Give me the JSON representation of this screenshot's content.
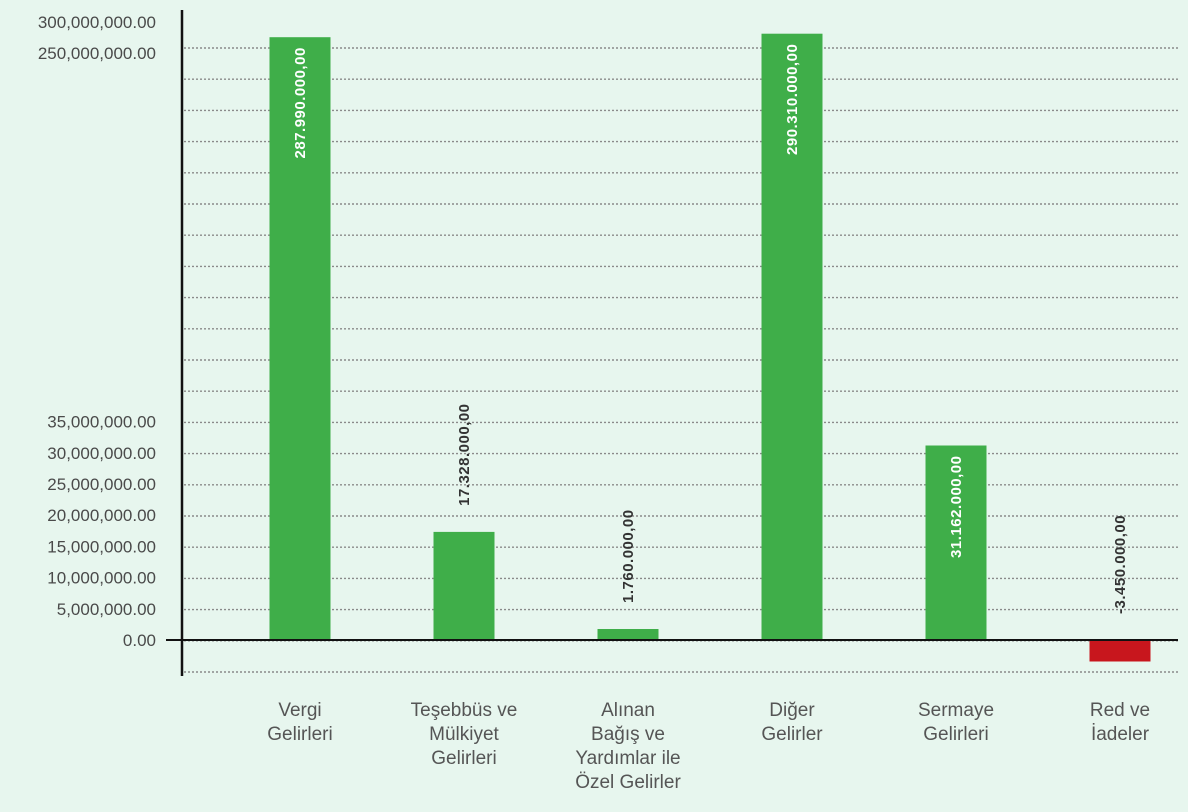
{
  "chart_data": {
    "type": "bar",
    "title": "",
    "xlabel": "",
    "ylabel": "",
    "ylim": [
      -5000000,
      300000000
    ],
    "axis_break": true,
    "y_ticks_lower": [
      0,
      5000000,
      10000000,
      15000000,
      20000000,
      25000000,
      30000000,
      35000000
    ],
    "y_ticks_upper": [
      250000000,
      300000000
    ],
    "y_tick_labels": {
      "0": "0.00",
      "5000000": "5,000,000.00",
      "10000000": "10,000,000.00",
      "15000000": "15,000,000.00",
      "20000000": "20,000,000.00",
      "25000000": "25,000,000.00",
      "30000000": "30,000,000.00",
      "35000000": "35,000,000.00",
      "250000000": "250,000,000.00",
      "300000000": "300,000,000.00"
    },
    "categories": [
      [
        "Vergi",
        "Gelirleri"
      ],
      [
        "Teşebbüs ve",
        "Mülkiyet",
        "Gelirleri"
      ],
      [
        "Alınan",
        "Bağış ve",
        "Yardımlar ile",
        "Özel Gelirler"
      ],
      [
        "Diğer",
        "Gelirler"
      ],
      [
        "Sermaye",
        "Gelirleri"
      ],
      [
        "Red ve",
        "İadeler"
      ]
    ],
    "values": [
      287990000,
      17328000,
      1760000,
      290310000,
      31162000,
      -3450000
    ],
    "data_labels": [
      "287.990.000,00",
      "17.328.000,00",
      "1.760.000,00",
      "290.310.000,00",
      "31.162.000,00",
      "-3.450.000,00"
    ],
    "grid": true,
    "legend": "none",
    "colors": {
      "positive": "#3fae49",
      "negative": "#c8161d",
      "grid": "#8a8a8a",
      "axis": "#111111",
      "label_inside": "#ffffff",
      "label_outside": "#333333",
      "background": "#e7f6ee"
    }
  }
}
